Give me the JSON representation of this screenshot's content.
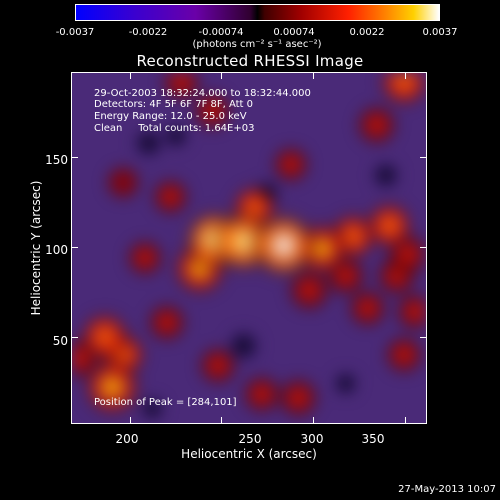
{
  "colorbar": {
    "labels": [
      "-0.0037",
      "-0.0022",
      "-0.00074",
      "0.00074",
      "0.0022",
      "0.0037"
    ],
    "units": "(photons cm⁻² s⁻¹ asec⁻²)",
    "min": -0.0037,
    "max": 0.0037
  },
  "title": "Reconstructed RHESSI Image",
  "info": {
    "time_range": "29-Oct-2003 18:32:24.000 to 18:32:44.000",
    "detectors": "Detectors: 4F 5F 6F 7F 8F, Att 0",
    "energy_range": "Energy Range: 12.0 - 25.0 keV",
    "method": "Clean     Total counts: 1.64E+03"
  },
  "peak_label": "Position of Peak = [284,101]",
  "footer_date": "27-May-2013 10:07",
  "chart_data": {
    "type": "heatmap",
    "title": "Reconstructed RHESSI Image",
    "xlabel": "Heliocentric X (arcsec)",
    "ylabel": "Heliocentric Y (arcsec)",
    "xlim": [
      168,
      362
    ],
    "ylim": [
      2,
      197
    ],
    "xticks": [
      200,
      250,
      300,
      350
    ],
    "yticks": [
      50,
      100,
      150
    ],
    "colormap": "blue-purple-black-red-yellow-white",
    "peak": {
      "x": 284,
      "y": 101
    },
    "sources": [
      {
        "x": 284,
        "y": 101,
        "intensity": 1.0
      },
      {
        "x": 262,
        "y": 103,
        "intensity": 0.9
      },
      {
        "x": 246,
        "y": 104,
        "intensity": 0.85
      },
      {
        "x": 238,
        "y": 88,
        "intensity": 0.7
      },
      {
        "x": 305,
        "y": 99,
        "intensity": 0.7
      },
      {
        "x": 322,
        "y": 106,
        "intensity": 0.55
      },
      {
        "x": 342,
        "y": 112,
        "intensity": 0.55
      },
      {
        "x": 268,
        "y": 122,
        "intensity": 0.5
      },
      {
        "x": 298,
        "y": 76,
        "intensity": 0.45
      },
      {
        "x": 318,
        "y": 84,
        "intensity": 0.4
      },
      {
        "x": 346,
        "y": 84,
        "intensity": 0.4
      },
      {
        "x": 352,
        "y": 96,
        "intensity": 0.45
      },
      {
        "x": 330,
        "y": 66,
        "intensity": 0.35
      },
      {
        "x": 350,
        "y": 40,
        "intensity": 0.35
      },
      {
        "x": 356,
        "y": 64,
        "intensity": 0.35
      },
      {
        "x": 190,
        "y": 22,
        "intensity": 0.8
      },
      {
        "x": 186,
        "y": 50,
        "intensity": 0.6
      },
      {
        "x": 196,
        "y": 40,
        "intensity": 0.5
      },
      {
        "x": 172,
        "y": 38,
        "intensity": 0.45
      },
      {
        "x": 220,
        "y": 58,
        "intensity": 0.35
      },
      {
        "x": 292,
        "y": 16,
        "intensity": 0.4
      },
      {
        "x": 272,
        "y": 18,
        "intensity": 0.35
      },
      {
        "x": 248,
        "y": 34,
        "intensity": 0.35
      },
      {
        "x": 350,
        "y": 192,
        "intensity": 0.6
      },
      {
        "x": 335,
        "y": 168,
        "intensity": 0.4
      },
      {
        "x": 245,
        "y": 176,
        "intensity": 0.35
      },
      {
        "x": 228,
        "y": 192,
        "intensity": 0.35
      },
      {
        "x": 288,
        "y": 146,
        "intensity": 0.3
      },
      {
        "x": 196,
        "y": 136,
        "intensity": 0.25
      },
      {
        "x": 208,
        "y": 94,
        "intensity": 0.3
      },
      {
        "x": 222,
        "y": 128,
        "intensity": 0.3
      }
    ],
    "depressions": [
      {
        "x": 262,
        "y": 45,
        "intensity": -0.6
      },
      {
        "x": 210,
        "y": 158,
        "intensity": -0.5
      },
      {
        "x": 340,
        "y": 140,
        "intensity": -0.4
      },
      {
        "x": 275,
        "y": 130,
        "intensity": -0.35
      },
      {
        "x": 225,
        "y": 162,
        "intensity": -0.3
      },
      {
        "x": 212,
        "y": 10,
        "intensity": -0.25
      },
      {
        "x": 318,
        "y": 24,
        "intensity": -0.25
      }
    ]
  }
}
